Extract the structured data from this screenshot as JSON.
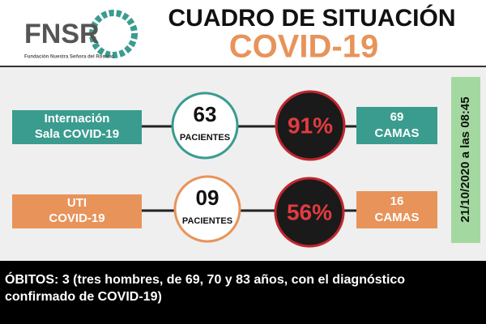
{
  "header": {
    "logo": "FNSR",
    "logo_subtitle": "Fundación Nuestra Señora del Rosario",
    "title": "CUADRO DE SITUACIÓN",
    "subtitle": "COVID-19"
  },
  "rows": [
    {
      "label": [
        "Internación",
        "Sala COVID-19"
      ],
      "patients": "63",
      "patients_label": "PACIENTES",
      "occupancy": "91%",
      "beds": "69",
      "beds_label": "CAMAS"
    },
    {
      "label": [
        "UTI",
        "COVID-19"
      ],
      "patients": "09",
      "patients_label": "PACIENTES",
      "occupancy": "56%",
      "beds": "16",
      "beds_label": "CAMAS"
    }
  ],
  "timestamp": "21/10/2020 a las 08:45",
  "footer": [
    "ÓBITOS: 3 (tres hombres, de 69, 70 y 83 años, con el diagnóstico",
    "confirmado de COVID-19)"
  ]
}
